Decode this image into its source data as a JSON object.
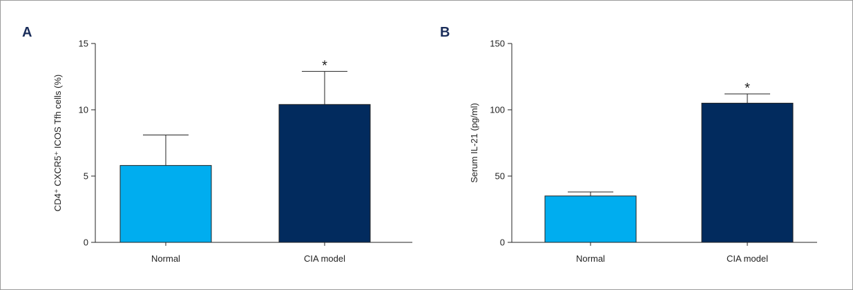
{
  "chart_data": [
    {
      "panel": "A",
      "type": "bar",
      "categories": [
        "Normal",
        "CIA model"
      ],
      "values": [
        5.8,
        10.4
      ],
      "errors": [
        2.3,
        2.5
      ],
      "annotations": [
        "",
        "*"
      ],
      "colors": [
        "#00adef",
        "#022b5e"
      ],
      "ylabel": "CD4⁺ CXCR5⁺ ICOS Tfh cells (%)",
      "xlabel": "",
      "ylim": [
        0,
        15
      ],
      "yticks": [
        0,
        5,
        10,
        15
      ],
      "grid": false,
      "legend": "none"
    },
    {
      "panel": "B",
      "type": "bar",
      "categories": [
        "Normal",
        "CIA model"
      ],
      "values": [
        35,
        105
      ],
      "errors": [
        3,
        7
      ],
      "annotations": [
        "",
        "*"
      ],
      "colors": [
        "#00adef",
        "#022b5e"
      ],
      "ylabel": "Serum IL-21 (pg/ml)",
      "xlabel": "",
      "ylim": [
        0,
        150
      ],
      "yticks": [
        0,
        50,
        100,
        150
      ],
      "grid": false,
      "legend": "none"
    }
  ]
}
